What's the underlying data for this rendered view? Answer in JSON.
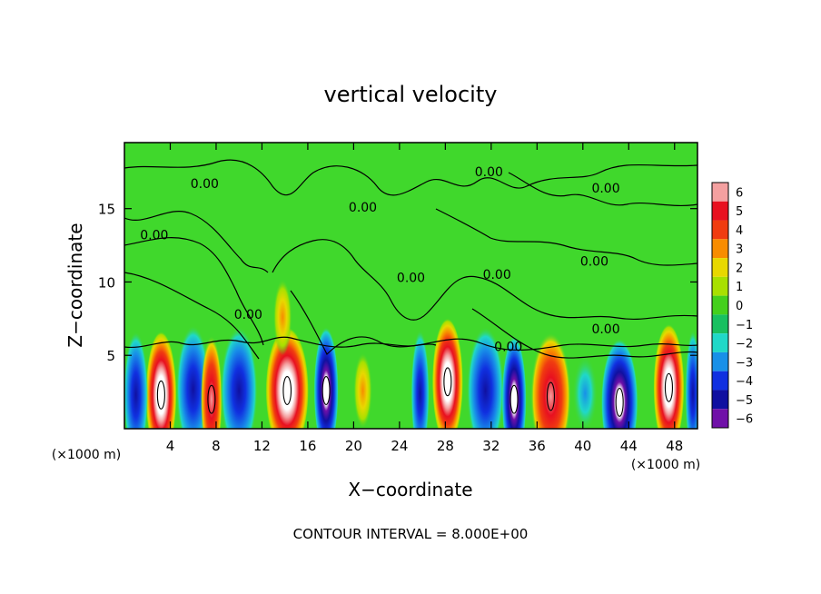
{
  "chart_data": {
    "type": "heatmap",
    "title": "vertical velocity",
    "xlabel": "X−coordinate",
    "ylabel": "Z−coordinate",
    "x_unit_left": "(×1000 m)",
    "x_unit_right": "(×1000 m)",
    "footer": "CONTOUR INTERVAL = 8.000E+00",
    "contour_label": "0.00",
    "xlim": [
      0,
      50
    ],
    "ylim": [
      0,
      19.5
    ],
    "x_ticks": [
      4,
      8,
      12,
      16,
      20,
      24,
      28,
      32,
      36,
      40,
      44,
      48
    ],
    "x_tick_labels": [
      "4",
      "8",
      "12",
      "16",
      "20",
      "24",
      "28",
      "32",
      "36",
      "40",
      "44",
      "48"
    ],
    "y_ticks": [
      5,
      10,
      15
    ],
    "y_tick_labels": [
      "5",
      "10",
      "15"
    ],
    "colorbar": {
      "levels": [
        6,
        5,
        4,
        3,
        2,
        1,
        0,
        -1,
        -2,
        -3,
        -4,
        -5,
        -6
      ],
      "labels": [
        "6",
        "5",
        "4",
        "3",
        "2",
        "1",
        "0",
        "−1",
        "−2",
        "−3",
        "−4",
        "−5",
        "−6"
      ],
      "colors": [
        "#f4a0a0",
        "#e81020",
        "#f03c10",
        "#f88c00",
        "#e8d800",
        "#a8e000",
        "#44d01c",
        "#18c060",
        "#20d8c8",
        "#1890e8",
        "#1030e0",
        "#1010a0",
        "#7010a8"
      ]
    },
    "background_value": 0,
    "background_color": "#40d82c",
    "cells": [
      {
        "x": 3.2,
        "z": 2.3,
        "w": 1.0,
        "kind": "updraft",
        "peak": 6
      },
      {
        "x": 1.0,
        "z": 2.3,
        "w": 0.8,
        "kind": "downdraft",
        "peak": -4
      },
      {
        "x": 6.0,
        "z": 2.7,
        "w": 1.1,
        "kind": "downdraft",
        "peak": -4
      },
      {
        "x": 7.6,
        "z": 2.0,
        "w": 0.7,
        "kind": "updraft",
        "peak": 5
      },
      {
        "x": 10.0,
        "z": 2.6,
        "w": 1.2,
        "kind": "downdraft",
        "peak": -4
      },
      {
        "x": 14.2,
        "z": 2.6,
        "w": 1.4,
        "kind": "updraft",
        "peak": 6
      },
      {
        "x": 17.6,
        "z": 2.6,
        "w": 0.8,
        "kind": "downdraft",
        "peak": -6
      },
      {
        "x": 20.8,
        "z": 2.6,
        "w": 0.6,
        "kind": "updraft",
        "peak": 2
      },
      {
        "x": 25.8,
        "z": 2.4,
        "w": 0.6,
        "kind": "downdraft",
        "peak": -4
      },
      {
        "x": 28.2,
        "z": 3.2,
        "w": 1.0,
        "kind": "updraft",
        "peak": 6
      },
      {
        "x": 31.5,
        "z": 2.6,
        "w": 1.2,
        "kind": "downdraft",
        "peak": -4
      },
      {
        "x": 34.0,
        "z": 2.0,
        "w": 0.8,
        "kind": "downdraft",
        "peak": -6
      },
      {
        "x": 37.2,
        "z": 2.2,
        "w": 1.3,
        "kind": "updraft",
        "peak": 5
      },
      {
        "x": 40.2,
        "z": 2.4,
        "w": 0.8,
        "kind": "downdraft",
        "peak": -2
      },
      {
        "x": 43.2,
        "z": 1.8,
        "w": 1.2,
        "kind": "downdraft",
        "peak": -6
      },
      {
        "x": 47.5,
        "z": 2.8,
        "w": 1.0,
        "kind": "updraft",
        "peak": 6
      },
      {
        "x": 49.6,
        "z": 2.4,
        "w": 0.5,
        "kind": "downdraft",
        "peak": -4
      },
      {
        "x": 13.8,
        "z": 7.6,
        "w": 0.6,
        "kind": "updraft",
        "peak": 3
      }
    ],
    "contour_label_positions": [
      {
        "x": 2.6,
        "z": 12.9
      },
      {
        "x": 7.0,
        "z": 16.4
      },
      {
        "x": 10.8,
        "z": 7.5
      },
      {
        "x": 20.8,
        "z": 14.8
      },
      {
        "x": 25.0,
        "z": 10.0
      },
      {
        "x": 31.8,
        "z": 17.2
      },
      {
        "x": 32.5,
        "z": 10.2
      },
      {
        "x": 33.5,
        "z": 5.3
      },
      {
        "x": 41.0,
        "z": 11.1
      },
      {
        "x": 42.0,
        "z": 16.1
      },
      {
        "x": 42.0,
        "z": 6.5
      }
    ]
  }
}
